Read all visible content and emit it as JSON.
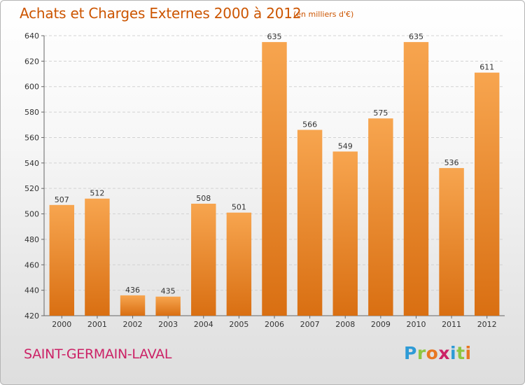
{
  "header": {
    "title": "Achats et Charges Externes 2000 à 2012",
    "subtitle": "(en milliers d'€)"
  },
  "footer": {
    "place_name": "SAINT-GERMAIN-LAVAL",
    "logo_text": "Proxiti"
  },
  "colors": {
    "bar_top": "#f7a54f",
    "bar_bottom": "#d96f12",
    "title": "#cc5500",
    "place_name": "#cc2266",
    "logo": [
      "#2e9bd6",
      "#8ec641",
      "#e87722",
      "#cc2266",
      "#2e9bd6",
      "#8ec641",
      "#e87722"
    ]
  },
  "chart_data": {
    "type": "bar",
    "categories": [
      "2000",
      "2001",
      "2002",
      "2003",
      "2004",
      "2005",
      "2006",
      "2007",
      "2008",
      "2009",
      "2010",
      "2011",
      "2012"
    ],
    "values": [
      507,
      512,
      436,
      435,
      508,
      501,
      635,
      566,
      549,
      575,
      635,
      536,
      611
    ],
    "data_labels": [
      "507",
      "512",
      "436",
      "435",
      "508",
      "501",
      "635",
      "566",
      "549",
      "575",
      "635",
      "536",
      "611"
    ],
    "title": "Achats et Charges Externes 2000 à 2012",
    "subtitle": "(en milliers d'€)",
    "xlabel": "",
    "ylabel": "",
    "ylim": [
      420,
      640
    ],
    "yticks": [
      420,
      440,
      460,
      480,
      500,
      520,
      540,
      560,
      580,
      600,
      620,
      640
    ],
    "grid": true,
    "legend": "none"
  }
}
